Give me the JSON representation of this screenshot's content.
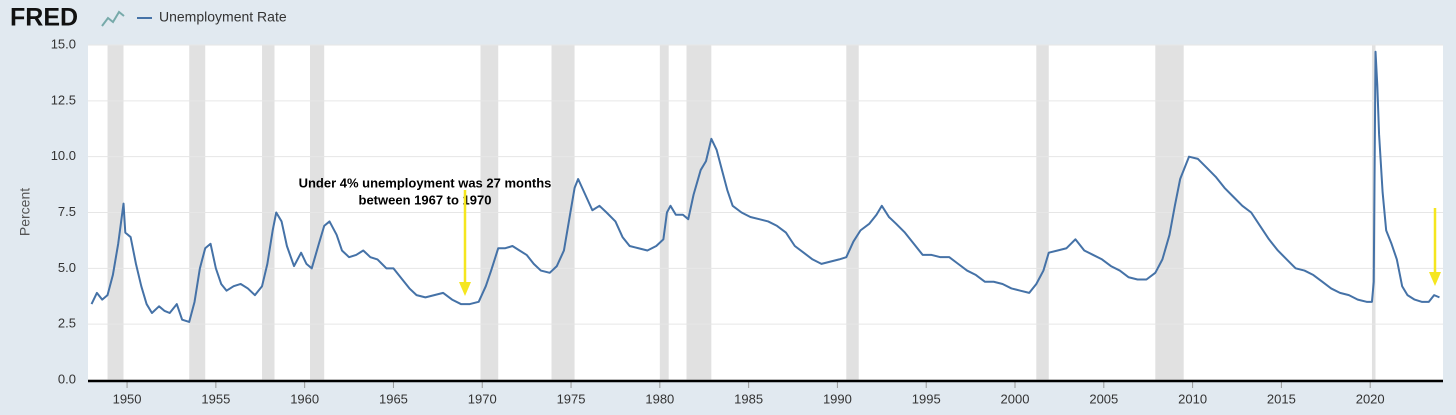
{
  "chart_data": {
    "type": "line",
    "logo": "FRED",
    "ylabel": "Percent",
    "annotation": [
      "Under 4% unemployment was 27 months",
      "between 1967 to 1970"
    ],
    "xlim": [
      1947.8,
      2024.1
    ],
    "xticks": [
      1950,
      1955,
      1960,
      1965,
      1970,
      1975,
      1980,
      1985,
      1990,
      1995,
      2000,
      2005,
      2010,
      2015,
      2020
    ],
    "ylim": [
      0,
      15
    ],
    "yticks": [
      {
        "value": 0,
        "label": "0.0"
      },
      2.5,
      {
        "value": 5,
        "label": "5.0"
      },
      7.5,
      {
        "value": 10,
        "label": "10.0"
      },
      12.5,
      {
        "value": 15,
        "label": "15.0"
      }
    ],
    "grid": true,
    "recessions": [
      [
        1948.9,
        1949.8
      ],
      [
        1953.5,
        1954.4
      ],
      [
        1957.6,
        1958.3
      ],
      [
        1960.3,
        1961.1
      ],
      [
        1969.9,
        1970.9
      ],
      [
        1973.9,
        1975.2
      ],
      [
        1980.0,
        1980.5
      ],
      [
        1981.5,
        1982.9
      ],
      [
        1990.5,
        1991.2
      ],
      [
        2001.2,
        2001.9
      ],
      [
        2007.9,
        2009.5
      ],
      [
        2020.1,
        2020.3
      ]
    ],
    "x": [
      1948.0,
      1948.3,
      1948.6,
      1948.9,
      1949.2,
      1949.5,
      1949.8,
      1949.9,
      1950.2,
      1950.5,
      1950.8,
      1951.1,
      1951.4,
      1951.8,
      1952.1,
      1952.4,
      1952.8,
      1953.1,
      1953.5,
      1953.8,
      1954.1,
      1954.4,
      1954.7,
      1955.0,
      1955.3,
      1955.6,
      1956.0,
      1956.4,
      1956.8,
      1957.2,
      1957.6,
      1957.9,
      1958.2,
      1958.4,
      1958.7,
      1959.0,
      1959.4,
      1959.8,
      1960.1,
      1960.4,
      1960.8,
      1961.1,
      1961.4,
      1961.8,
      1962.1,
      1962.5,
      1962.9,
      1963.3,
      1963.7,
      1964.1,
      1964.6,
      1965.0,
      1965.5,
      1965.9,
      1966.3,
      1966.8,
      1967.3,
      1967.8,
      1968.3,
      1968.8,
      1969.3,
      1969.8,
      1970.2,
      1970.5,
      1970.9,
      1971.3,
      1971.7,
      1972.1,
      1972.5,
      1972.9,
      1973.3,
      1973.8,
      1974.2,
      1974.6,
      1974.9,
      1975.2,
      1975.4,
      1975.8,
      1976.2,
      1976.6,
      1977.0,
      1977.5,
      1977.9,
      1978.3,
      1978.8,
      1979.3,
      1979.8,
      1980.2,
      1980.4,
      1980.6,
      1980.9,
      1981.3,
      1981.6,
      1981.9,
      1982.3,
      1982.6,
      1982.9,
      1983.2,
      1983.5,
      1983.8,
      1984.1,
      1984.6,
      1985.1,
      1985.6,
      1986.1,
      1986.6,
      1987.1,
      1987.6,
      1988.1,
      1988.6,
      1989.1,
      1989.6,
      1990.1,
      1990.5,
      1990.9,
      1991.3,
      1991.8,
      1992.2,
      1992.5,
      1992.9,
      1993.3,
      1993.8,
      1994.3,
      1994.8,
      1995.3,
      1995.8,
      1996.3,
      1996.8,
      1997.3,
      1997.8,
      1998.3,
      1998.8,
      1999.3,
      1999.8,
      2000.3,
      2000.8,
      2001.2,
      2001.6,
      2001.9,
      2002.4,
      2002.9,
      2003.4,
      2003.9,
      2004.4,
      2004.9,
      2005.4,
      2005.9,
      2006.4,
      2006.9,
      2007.4,
      2007.9,
      2008.3,
      2008.7,
      2009.0,
      2009.3,
      2009.8,
      2010.3,
      2010.8,
      2011.3,
      2011.8,
      2012.3,
      2012.8,
      2013.3,
      2013.8,
      2014.3,
      2014.8,
      2015.3,
      2015.8,
      2016.3,
      2016.8,
      2017.3,
      2017.8,
      2018.3,
      2018.8,
      2019.3,
      2019.8,
      2020.1,
      2020.2,
      2020.3,
      2020.4,
      2020.5,
      2020.7,
      2020.9,
      2021.2,
      2021.5,
      2021.8,
      2022.1,
      2022.5,
      2022.9,
      2023.3,
      2023.6,
      2023.9
    ],
    "series": [
      {
        "name": "Unemployment Rate",
        "color": "#4572a7",
        "values": [
          3.4,
          3.9,
          3.6,
          3.8,
          4.7,
          6.1,
          7.9,
          6.6,
          6.4,
          5.2,
          4.2,
          3.4,
          3.0,
          3.3,
          3.1,
          3.0,
          3.4,
          2.7,
          2.6,
          3.5,
          5.0,
          5.9,
          6.1,
          5.0,
          4.3,
          4.0,
          4.2,
          4.3,
          4.1,
          3.8,
          4.2,
          5.2,
          6.7,
          7.5,
          7.1,
          6.0,
          5.1,
          5.7,
          5.2,
          5.0,
          6.1,
          6.9,
          7.1,
          6.5,
          5.8,
          5.5,
          5.6,
          5.8,
          5.5,
          5.4,
          5.0,
          5.0,
          4.5,
          4.1,
          3.8,
          3.7,
          3.8,
          3.9,
          3.6,
          3.4,
          3.4,
          3.5,
          4.2,
          4.9,
          5.9,
          5.9,
          6.0,
          5.8,
          5.6,
          5.2,
          4.9,
          4.8,
          5.1,
          5.8,
          7.2,
          8.6,
          9.0,
          8.3,
          7.6,
          7.8,
          7.5,
          7.1,
          6.4,
          6.0,
          5.9,
          5.8,
          6.0,
          6.3,
          7.5,
          7.8,
          7.4,
          7.4,
          7.2,
          8.3,
          9.4,
          9.8,
          10.8,
          10.3,
          9.4,
          8.5,
          7.8,
          7.5,
          7.3,
          7.2,
          7.1,
          6.9,
          6.6,
          6.0,
          5.7,
          5.4,
          5.2,
          5.3,
          5.4,
          5.5,
          6.2,
          6.7,
          7.0,
          7.4,
          7.8,
          7.3,
          7.0,
          6.6,
          6.1,
          5.6,
          5.6,
          5.5,
          5.5,
          5.2,
          4.9,
          4.7,
          4.4,
          4.4,
          4.3,
          4.1,
          4.0,
          3.9,
          4.3,
          4.9,
          5.7,
          5.8,
          5.9,
          6.3,
          5.8,
          5.6,
          5.4,
          5.1,
          4.9,
          4.6,
          4.5,
          4.5,
          4.8,
          5.4,
          6.5,
          7.8,
          9.0,
          10.0,
          9.9,
          9.5,
          9.1,
          8.6,
          8.2,
          7.8,
          7.5,
          6.9,
          6.3,
          5.8,
          5.4,
          5.0,
          4.9,
          4.7,
          4.4,
          4.1,
          3.9,
          3.8,
          3.6,
          3.5,
          3.5,
          4.4,
          14.7,
          13.2,
          11.0,
          8.4,
          6.7,
          6.1,
          5.4,
          4.2,
          3.8,
          3.6,
          3.5,
          3.5,
          3.8,
          3.7
        ]
      }
    ]
  }
}
